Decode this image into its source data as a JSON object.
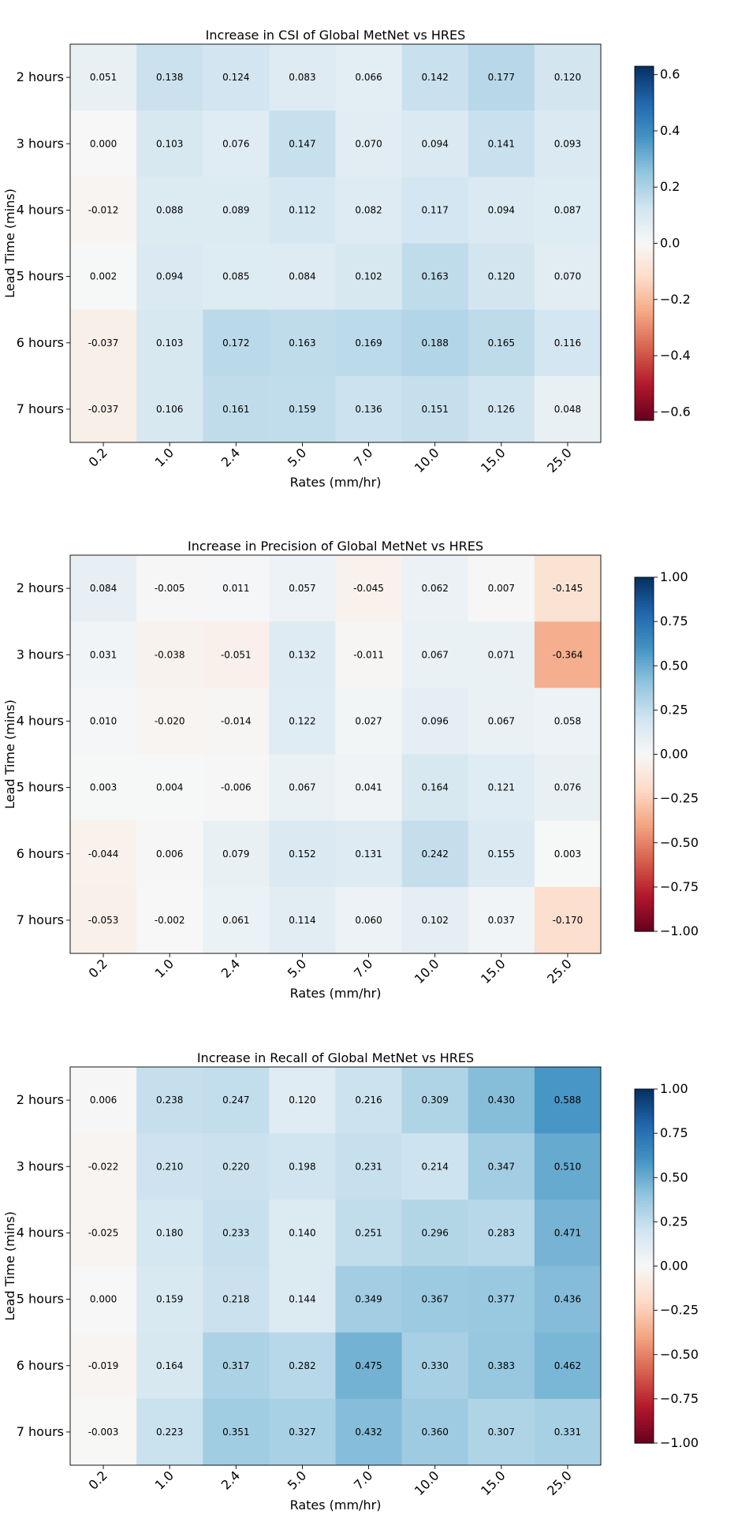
{
  "chart_data": [
    {
      "type": "heatmap",
      "title": "Increase in CSI of Global MetNet vs HRES",
      "xlabel": "Rates (mm/hr)",
      "ylabel": "Lead Time (mins)",
      "x_categories": [
        "0.2",
        "1.0",
        "2.4",
        "5.0",
        "7.0",
        "10.0",
        "15.0",
        "25.0"
      ],
      "y_categories": [
        "2 hours",
        "3 hours",
        "4 hours",
        "5 hours",
        "6 hours",
        "7 hours"
      ],
      "values": [
        [
          0.051,
          0.138,
          0.124,
          0.083,
          0.066,
          0.142,
          0.177,
          0.12
        ],
        [
          0.0,
          0.103,
          0.076,
          0.147,
          0.07,
          0.094,
          0.141,
          0.093
        ],
        [
          -0.012,
          0.088,
          0.089,
          0.112,
          0.082,
          0.117,
          0.094,
          0.087
        ],
        [
          0.002,
          0.094,
          0.085,
          0.084,
          0.102,
          0.163,
          0.12,
          0.07
        ],
        [
          -0.037,
          0.103,
          0.172,
          0.163,
          0.169,
          0.188,
          0.165,
          0.116
        ],
        [
          -0.037,
          0.106,
          0.161,
          0.159,
          0.136,
          0.151,
          0.126,
          0.048
        ]
      ],
      "value_labels": [
        [
          "0.051",
          "0.138",
          "0.124",
          "0.083",
          "0.066",
          "0.142",
          "0.177",
          "0.120"
        ],
        [
          "0.000",
          "0.103",
          "0.076",
          "0.147",
          "0.070",
          "0.094",
          "0.141",
          "0.093"
        ],
        [
          "-0.012",
          "0.088",
          "0.089",
          "0.112",
          "0.082",
          "0.117",
          "0.094",
          "0.087"
        ],
        [
          "0.002",
          "0.094",
          "0.085",
          "0.084",
          "0.102",
          "0.163",
          "0.120",
          "0.070"
        ],
        [
          "-0.037",
          "0.103",
          "0.172",
          "0.163",
          "0.169",
          "0.188",
          "0.165",
          "0.116"
        ],
        [
          "-0.037",
          "0.106",
          "0.161",
          "0.159",
          "0.136",
          "0.151",
          "0.126",
          "0.048"
        ]
      ],
      "colormap": "RdBu",
      "vmin": -0.63,
      "vmax": 0.63,
      "colorbar_ticks": [
        0.6,
        0.4,
        0.2,
        0.0,
        -0.2,
        -0.4,
        -0.6
      ],
      "colorbar_tick_labels": [
        "0.6",
        "0.4",
        "0.2",
        "0.0",
        "−0.2",
        "−0.4",
        "−0.6"
      ],
      "legend": "right"
    },
    {
      "type": "heatmap",
      "title": "Increase in Precision of Global MetNet vs HRES",
      "xlabel": "Rates (mm/hr)",
      "ylabel": "Lead Time (mins)",
      "x_categories": [
        "0.2",
        "1.0",
        "2.4",
        "5.0",
        "7.0",
        "10.0",
        "15.0",
        "25.0"
      ],
      "y_categories": [
        "2 hours",
        "3 hours",
        "4 hours",
        "5 hours",
        "6 hours",
        "7 hours"
      ],
      "values": [
        [
          0.084,
          -0.005,
          0.011,
          0.057,
          -0.045,
          0.062,
          0.007,
          -0.145
        ],
        [
          0.031,
          -0.038,
          -0.051,
          0.132,
          -0.011,
          0.067,
          0.071,
          -0.364
        ],
        [
          0.01,
          -0.02,
          -0.014,
          0.122,
          0.027,
          0.096,
          0.067,
          0.058
        ],
        [
          0.003,
          0.004,
          -0.006,
          0.067,
          0.041,
          0.164,
          0.121,
          0.076
        ],
        [
          -0.044,
          0.006,
          0.079,
          0.152,
          0.131,
          0.242,
          0.155,
          0.003
        ],
        [
          -0.053,
          -0.002,
          0.061,
          0.114,
          0.06,
          0.102,
          0.037,
          -0.17
        ]
      ],
      "value_labels": [
        [
          "0.084",
          "-0.005",
          "0.011",
          "0.057",
          "-0.045",
          "0.062",
          "0.007",
          "-0.145"
        ],
        [
          "0.031",
          "-0.038",
          "-0.051",
          "0.132",
          "-0.011",
          "0.067",
          "0.071",
          "-0.364"
        ],
        [
          "0.010",
          "-0.020",
          "-0.014",
          "0.122",
          "0.027",
          "0.096",
          "0.067",
          "0.058"
        ],
        [
          "0.003",
          "0.004",
          "-0.006",
          "0.067",
          "0.041",
          "0.164",
          "0.121",
          "0.076"
        ],
        [
          "-0.044",
          "0.006",
          "0.079",
          "0.152",
          "0.131",
          "0.242",
          "0.155",
          "0.003"
        ],
        [
          "-0.053",
          "-0.002",
          "0.061",
          "0.114",
          "0.060",
          "0.102",
          "0.037",
          "-0.170"
        ]
      ],
      "colormap": "RdBu",
      "vmin": -1.0,
      "vmax": 1.0,
      "colorbar_ticks": [
        1.0,
        0.75,
        0.5,
        0.25,
        0.0,
        -0.25,
        -0.5,
        -0.75,
        -1.0
      ],
      "colorbar_tick_labels": [
        "1.00",
        "0.75",
        "0.50",
        "0.25",
        "0.00",
        "−0.25",
        "−0.50",
        "−0.75",
        "−1.00"
      ],
      "legend": "right"
    },
    {
      "type": "heatmap",
      "title": "Increase in Recall of Global MetNet vs HRES",
      "xlabel": "Rates (mm/hr)",
      "ylabel": "Lead Time (mins)",
      "x_categories": [
        "0.2",
        "1.0",
        "2.4",
        "5.0",
        "7.0",
        "10.0",
        "15.0",
        "25.0"
      ],
      "y_categories": [
        "2 hours",
        "3 hours",
        "4 hours",
        "5 hours",
        "6 hours",
        "7 hours"
      ],
      "values": [
        [
          0.006,
          0.238,
          0.247,
          0.12,
          0.216,
          0.309,
          0.43,
          0.588
        ],
        [
          -0.022,
          0.21,
          0.22,
          0.198,
          0.231,
          0.214,
          0.347,
          0.51
        ],
        [
          -0.025,
          0.18,
          0.233,
          0.14,
          0.251,
          0.296,
          0.283,
          0.471
        ],
        [
          0.0,
          0.159,
          0.218,
          0.144,
          0.349,
          0.367,
          0.377,
          0.436
        ],
        [
          -0.019,
          0.164,
          0.317,
          0.282,
          0.475,
          0.33,
          0.383,
          0.462
        ],
        [
          -0.003,
          0.223,
          0.351,
          0.327,
          0.432,
          0.36,
          0.307,
          0.331
        ]
      ],
      "value_labels": [
        [
          "0.006",
          "0.238",
          "0.247",
          "0.120",
          "0.216",
          "0.309",
          "0.430",
          "0.588"
        ],
        [
          "-0.022",
          "0.210",
          "0.220",
          "0.198",
          "0.231",
          "0.214",
          "0.347",
          "0.510"
        ],
        [
          "-0.025",
          "0.180",
          "0.233",
          "0.140",
          "0.251",
          "0.296",
          "0.283",
          "0.471"
        ],
        [
          "0.000",
          "0.159",
          "0.218",
          "0.144",
          "0.349",
          "0.367",
          "0.377",
          "0.436"
        ],
        [
          "-0.019",
          "0.164",
          "0.317",
          "0.282",
          "0.475",
          "0.330",
          "0.383",
          "0.462"
        ],
        [
          "-0.003",
          "0.223",
          "0.351",
          "0.327",
          "0.432",
          "0.360",
          "0.307",
          "0.331"
        ]
      ],
      "colormap": "RdBu",
      "vmin": -1.0,
      "vmax": 1.0,
      "colorbar_ticks": [
        1.0,
        0.75,
        0.5,
        0.25,
        0.0,
        -0.25,
        -0.5,
        -0.75,
        -1.0
      ],
      "colorbar_tick_labels": [
        "1.00",
        "0.75",
        "0.50",
        "0.25",
        "0.00",
        "−0.25",
        "−0.50",
        "−0.75",
        "−1.00"
      ],
      "legend": "right"
    }
  ],
  "colors": {
    "colormap_stops": [
      "#67001f",
      "#b2182b",
      "#d6604d",
      "#f4a582",
      "#fddbc7",
      "#f7f7f7",
      "#d1e5f0",
      "#92c5de",
      "#4393c3",
      "#2166ac",
      "#053061"
    ],
    "axis": "#000000",
    "cell_text": "#000000"
  }
}
